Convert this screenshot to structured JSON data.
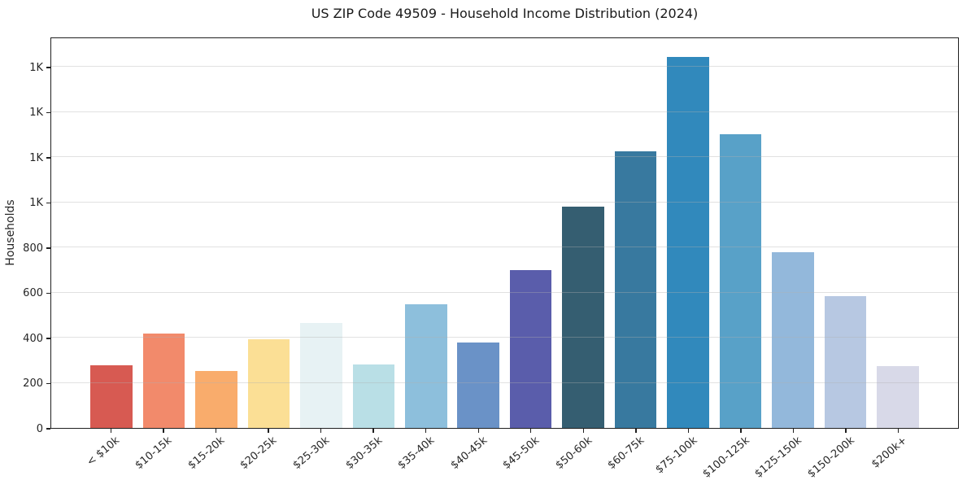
{
  "chart_data": {
    "type": "bar",
    "title": "US ZIP Code 49509 - Household Income Distribution (2024)",
    "xlabel": "",
    "ylabel": "Households",
    "categories": [
      "< $10k",
      "$10-15k",
      "$15-20k",
      "$20-25k",
      "$25-30k",
      "$30-35k",
      "$35-40k",
      "$40-45k",
      "$45-50k",
      "$50-60k",
      "$60-75k",
      "$75-100k",
      "$100-125k",
      "$125-150k",
      "$150-200k",
      "$200k+"
    ],
    "values": [
      277,
      420,
      255,
      396,
      467,
      284,
      549,
      380,
      703,
      984,
      1231,
      1651,
      1307,
      782,
      588,
      276
    ],
    "bar_colors": [
      "#d75a52",
      "#f28a6b",
      "#f9ac6c",
      "#fbdf95",
      "#e7f2f4",
      "#b9dfe6",
      "#8dbfdc",
      "#6a92c7",
      "#5a5dab",
      "#355e71",
      "#38799f",
      "#3189bc",
      "#58a1c8",
      "#93b8db",
      "#b7c8e2",
      "#d8d9e8"
    ],
    "ylim": [
      0,
      1734
    ],
    "yticks": [
      {
        "value": 0,
        "label": "0"
      },
      {
        "value": 200,
        "label": "200"
      },
      {
        "value": 400,
        "label": "400"
      },
      {
        "value": 600,
        "label": "600"
      },
      {
        "value": 800,
        "label": "800"
      },
      {
        "value": 1000,
        "label": "1K"
      },
      {
        "value": 1200,
        "label": "1K"
      },
      {
        "value": 1400,
        "label": "1K"
      },
      {
        "value": 1600,
        "label": "1K"
      }
    ],
    "grid": "horizontal",
    "legend_position": "none"
  }
}
